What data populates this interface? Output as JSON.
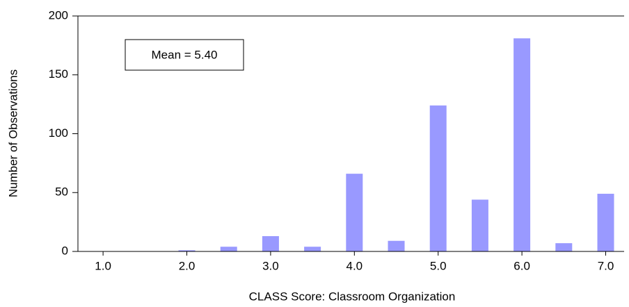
{
  "chart_data": {
    "type": "bar",
    "x_label": "CLASS Score: Classroom Organization",
    "y_label": "Number of Observations",
    "annotation": "Mean = 5.40",
    "x": [
      2.0,
      2.5,
      3.0,
      3.5,
      4.0,
      4.5,
      5.0,
      5.5,
      6.0,
      6.5,
      7.0
    ],
    "values": [
      1,
      4,
      13,
      4,
      66,
      9,
      124,
      44,
      181,
      7,
      49
    ],
    "color": "#9999ff",
    "xlim": [
      0.7,
      7.22
    ],
    "xticks": [
      {
        "value": 1,
        "label": "1.0"
      },
      {
        "value": 2,
        "label": "2.0"
      },
      {
        "value": 3,
        "label": "3.0"
      },
      {
        "value": 4,
        "label": "4.0"
      },
      {
        "value": 5,
        "label": "5.0"
      },
      {
        "value": 6,
        "label": "6.0"
      },
      {
        "value": 7,
        "label": "7.0"
      }
    ],
    "ylim": [
      0,
      200
    ],
    "yticks": [
      0,
      50,
      100,
      150,
      200
    ],
    "grid": false
  }
}
